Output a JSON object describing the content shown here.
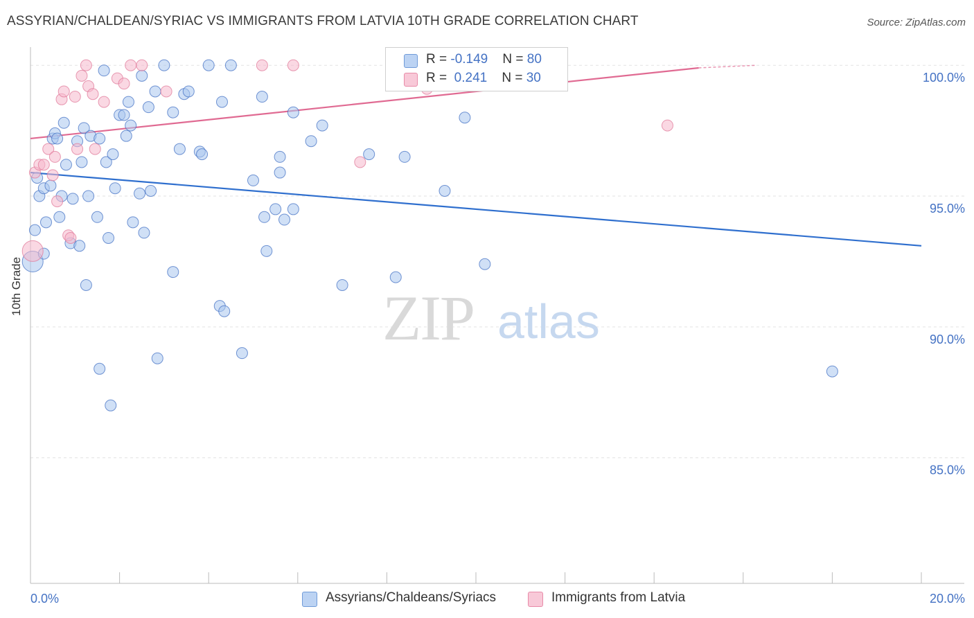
{
  "header": {
    "title": "ASSYRIAN/CHALDEAN/SYRIAC VS IMMIGRANTS FROM LATVIA 10TH GRADE CORRELATION CHART",
    "source": "Source: ZipAtlas.com"
  },
  "watermark": {
    "zip": "ZIP",
    "atlas": "atlas"
  },
  "legend": {
    "rows": [
      {
        "r_label": "R = ",
        "r_value": "-0.149",
        "n_label": "N = ",
        "n_value": "80",
        "color": "#a9c6ef"
      },
      {
        "r_label": "R = ",
        "r_value": " 0.241",
        "n_label": "N = ",
        "n_value": "30",
        "color": "#f5b8cc"
      }
    ]
  },
  "bottom_legend": {
    "items": [
      {
        "label": "Assyrians/Chaldeans/Syriacs",
        "color": "#a9c6ef"
      },
      {
        "label": "Immigrants from Latvia",
        "color": "#f5b8cc"
      }
    ]
  },
  "chart_data": {
    "type": "scatter",
    "title": "ASSYRIAN/CHALDEAN/SYRIAC VS IMMIGRANTS FROM LATVIA 10TH GRADE CORRELATION CHART",
    "xlabel": "",
    "ylabel": "10th Grade",
    "xlim": [
      0,
      20
    ],
    "ylim": [
      80.2,
      100.8
    ],
    "x_tick_labels": [
      {
        "value": 0,
        "label": "0.0%"
      },
      {
        "value": 20,
        "label": "20.0%"
      }
    ],
    "y_tick_labels": [
      {
        "value": 100,
        "label": "100.0%"
      },
      {
        "value": 95,
        "label": "95.0%"
      },
      {
        "value": 90,
        "label": "90.0%"
      },
      {
        "value": 85,
        "label": "85.0%"
      }
    ],
    "grid": true,
    "legend_position": "top-center",
    "series": [
      {
        "name": "Assyrians/Chaldeans/Syriacs",
        "color": "#4472c4",
        "fill": "#a9c6ef",
        "trend": {
          "x": [
            0.0,
            20.0
          ],
          "y": [
            95.9,
            93.1
          ],
          "color": "#2f6fce"
        },
        "points": [
          [
            0.05,
            92.5
          ],
          [
            0.1,
            93.7
          ],
          [
            0.15,
            95.7
          ],
          [
            0.2,
            95.0
          ],
          [
            0.3,
            95.3
          ],
          [
            0.3,
            92.8
          ],
          [
            0.35,
            94.0
          ],
          [
            0.45,
            95.4
          ],
          [
            0.5,
            97.2
          ],
          [
            0.55,
            97.4
          ],
          [
            0.6,
            97.2
          ],
          [
            0.65,
            94.2
          ],
          [
            0.7,
            95.0
          ],
          [
            0.75,
            97.8
          ],
          [
            0.8,
            96.2
          ],
          [
            0.9,
            93.2
          ],
          [
            0.95,
            94.9
          ],
          [
            1.05,
            97.1
          ],
          [
            1.1,
            93.1
          ],
          [
            1.15,
            96.3
          ],
          [
            1.2,
            97.6
          ],
          [
            1.25,
            91.6
          ],
          [
            1.3,
            95.0
          ],
          [
            1.35,
            97.3
          ],
          [
            1.5,
            94.2
          ],
          [
            1.55,
            88.4
          ],
          [
            1.55,
            97.2
          ],
          [
            1.65,
            99.8
          ],
          [
            1.7,
            96.3
          ],
          [
            1.75,
            93.4
          ],
          [
            1.8,
            87.0
          ],
          [
            1.85,
            96.6
          ],
          [
            1.9,
            95.3
          ],
          [
            2.0,
            98.1
          ],
          [
            2.1,
            98.1
          ],
          [
            2.15,
            97.3
          ],
          [
            2.2,
            98.6
          ],
          [
            2.25,
            97.7
          ],
          [
            2.3,
            94.0
          ],
          [
            2.45,
            95.1
          ],
          [
            2.5,
            99.6
          ],
          [
            2.55,
            93.6
          ],
          [
            2.65,
            98.4
          ],
          [
            2.7,
            95.2
          ],
          [
            2.8,
            99.0
          ],
          [
            2.85,
            88.8
          ],
          [
            3.0,
            100.0
          ],
          [
            3.2,
            98.2
          ],
          [
            3.2,
            92.1
          ],
          [
            3.35,
            96.8
          ],
          [
            3.45,
            98.9
          ],
          [
            3.55,
            99.0
          ],
          [
            3.8,
            96.7
          ],
          [
            3.85,
            96.6
          ],
          [
            4.0,
            100.0
          ],
          [
            4.25,
            90.8
          ],
          [
            4.3,
            98.6
          ],
          [
            4.35,
            90.6
          ],
          [
            4.5,
            100.0
          ],
          [
            4.75,
            89.0
          ],
          [
            5.0,
            95.6
          ],
          [
            5.2,
            98.8
          ],
          [
            5.25,
            94.2
          ],
          [
            5.3,
            92.9
          ],
          [
            5.5,
            94.5
          ],
          [
            5.6,
            96.5
          ],
          [
            5.6,
            95.9
          ],
          [
            5.7,
            94.1
          ],
          [
            5.9,
            94.5
          ],
          [
            5.9,
            98.2
          ],
          [
            6.3,
            97.1
          ],
          [
            6.55,
            97.7
          ],
          [
            7.0,
            91.6
          ],
          [
            7.6,
            96.6
          ],
          [
            8.2,
            91.9
          ],
          [
            8.4,
            96.5
          ],
          [
            9.3,
            95.2
          ],
          [
            9.75,
            98.0
          ],
          [
            10.2,
            92.4
          ],
          [
            18.0,
            88.3
          ]
        ]
      },
      {
        "name": "Immigrants from Latvia",
        "color": "#e07a9a",
        "fill": "#f5b8cc",
        "trend": {
          "x": [
            0.0,
            15.0
          ],
          "y": [
            97.2,
            99.9
          ],
          "color": "#e06a92",
          "dashed_extension": {
            "x": [
              15.0,
              16.3
            ],
            "y": [
              99.9,
              100.0
            ]
          }
        },
        "points": [
          [
            0.05,
            92.9
          ],
          [
            0.1,
            95.9
          ],
          [
            0.2,
            96.2
          ],
          [
            0.3,
            96.2
          ],
          [
            0.4,
            96.8
          ],
          [
            0.5,
            95.8
          ],
          [
            0.55,
            96.5
          ],
          [
            0.6,
            94.8
          ],
          [
            0.7,
            98.7
          ],
          [
            0.75,
            99.0
          ],
          [
            0.85,
            93.5
          ],
          [
            0.9,
            93.4
          ],
          [
            1.0,
            98.8
          ],
          [
            1.05,
            96.8
          ],
          [
            1.15,
            99.6
          ],
          [
            1.25,
            100.0
          ],
          [
            1.3,
            99.2
          ],
          [
            1.4,
            98.9
          ],
          [
            1.45,
            96.8
          ],
          [
            1.65,
            98.6
          ],
          [
            1.95,
            99.5
          ],
          [
            2.1,
            99.3
          ],
          [
            2.25,
            100.0
          ],
          [
            2.5,
            100.0
          ],
          [
            3.05,
            99.0
          ],
          [
            5.2,
            100.0
          ],
          [
            5.9,
            100.0
          ],
          [
            7.4,
            96.3
          ],
          [
            8.9,
            99.1
          ],
          [
            14.3,
            97.7
          ]
        ]
      }
    ]
  }
}
